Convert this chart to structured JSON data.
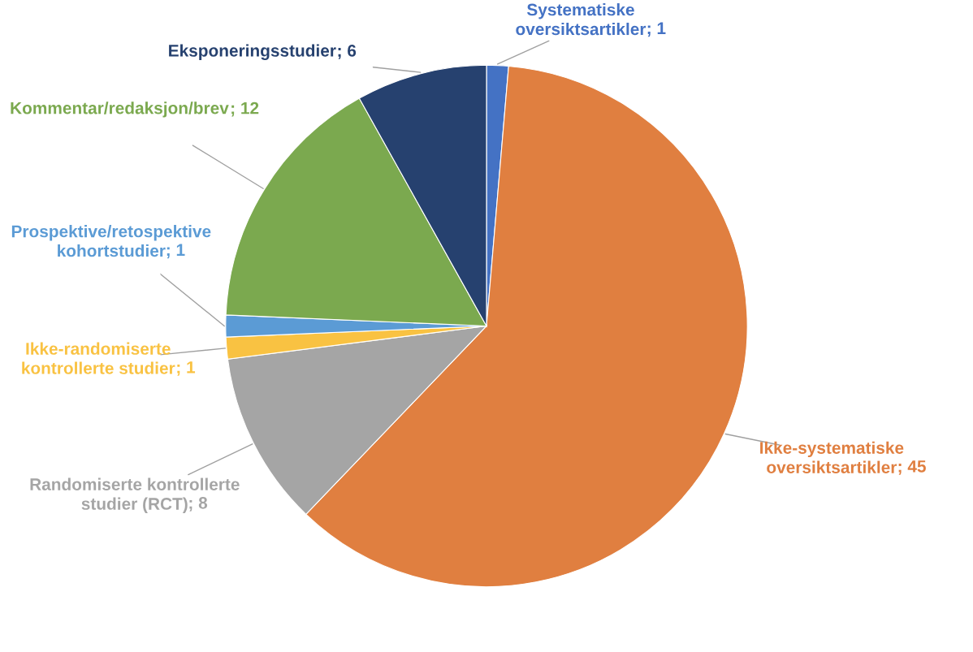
{
  "chart_data": {
    "type": "pie",
    "categories": [
      "Systematiske\noversiktsartikler",
      "Ikke-systematiske\noversiktsartikler",
      "Randomiserte kontrollerte\nstudier (RCT)",
      "Ikke-randomiserte\nkontrollerte studier",
      "Prospektive/retospektive\nkohortstudier",
      "Kommentar/redaksjon/brev",
      "Eksponeringsstudier"
    ],
    "values": [
      1,
      45,
      8,
      1,
      1,
      12,
      6
    ],
    "colors": [
      "#4472c4",
      "#e07f40",
      "#a5a5a5",
      "#f9c242",
      "#5b9bd5",
      "#7ba94f",
      "#26416f"
    ],
    "value_labels": [
      "; 1",
      "; 45",
      "; 8",
      "; 1",
      "; 1",
      "; 12",
      "; 6"
    ]
  }
}
